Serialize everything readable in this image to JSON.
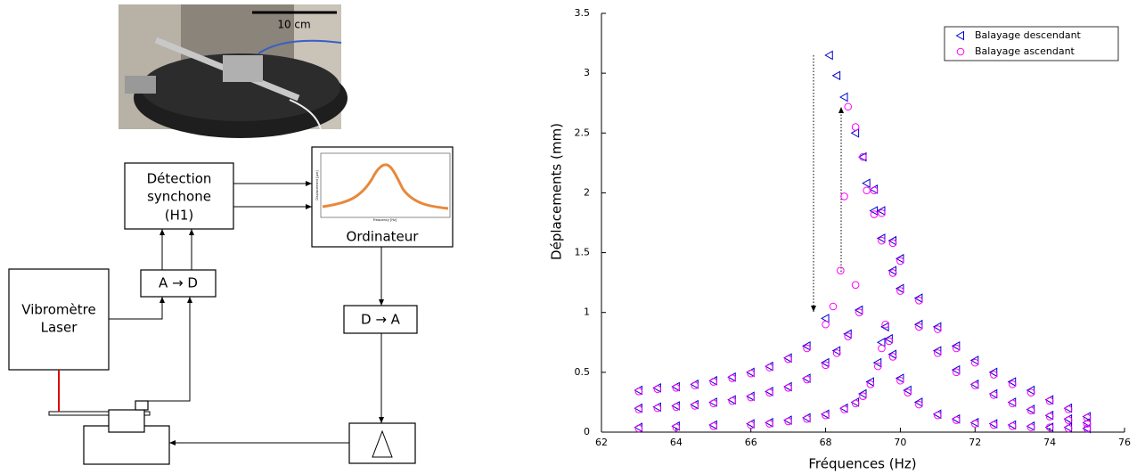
{
  "diagram": {
    "photo": {
      "scale_label": "10 cm"
    },
    "blocks": {
      "detection": [
        "Détection",
        "synchone",
        "(H1)"
      ],
      "adc": "A → D",
      "vibrometer": [
        "Vibromètre",
        "Laser"
      ],
      "computer": "Ordinateur",
      "dac": "D → A"
    },
    "inset": {
      "x_label": "Frequency [Hz]",
      "y_label": "Displacement [µm]"
    }
  },
  "chart_data": {
    "type": "scatter",
    "x_label": "Fréquences (Hz)",
    "y_label": "Déplacements (mm)",
    "xlim": [
      62,
      76
    ],
    "xticks": [
      62,
      64,
      66,
      68,
      70,
      72,
      74,
      76
    ],
    "ylim": [
      0,
      3.5
    ],
    "yticks": [
      0,
      0.5,
      1,
      1.5,
      2,
      2.5,
      3,
      3.5
    ],
    "legend": "upper right",
    "series": [
      {
        "name": "Balayage descendant",
        "color": "#0000cc",
        "marker": "triangle-left",
        "x": [
          63,
          63.5,
          64,
          64.5,
          65,
          65.5,
          66,
          66.5,
          67,
          67.5,
          68,
          68.1,
          68.3,
          68.5,
          68.8,
          69,
          69.3,
          69.5,
          69.8,
          70,
          70.5,
          71,
          71.5,
          72,
          72.5,
          73,
          73.5,
          74,
          74.5,
          75,
          63,
          63.5,
          64,
          64.5,
          65,
          65.5,
          66,
          66.5,
          67,
          67.5,
          68,
          68.3,
          68.6,
          68.9,
          69.1,
          69.3,
          69.5,
          69.8,
          70,
          70.5,
          71,
          71.5,
          72,
          72.5,
          73,
          73.5,
          74,
          74.5,
          75,
          63,
          64,
          65,
          66,
          66.5,
          67,
          67.5,
          68,
          68.5,
          68.8,
          69,
          69.2,
          69.4,
          69.5,
          69.6,
          69.7,
          69.8,
          70,
          70.2,
          70.5,
          71,
          71.5,
          72,
          72.5,
          73,
          73.5,
          74,
          74.5,
          75
        ],
        "values": [
          0.35,
          0.37,
          0.38,
          0.4,
          0.43,
          0.46,
          0.5,
          0.55,
          0.62,
          0.72,
          0.95,
          3.15,
          2.98,
          2.8,
          2.5,
          2.3,
          2.03,
          1.85,
          1.6,
          1.45,
          1.12,
          0.88,
          0.72,
          0.6,
          0.5,
          0.42,
          0.35,
          0.27,
          0.2,
          0.13,
          0.2,
          0.21,
          0.22,
          0.23,
          0.25,
          0.27,
          0.3,
          0.34,
          0.38,
          0.45,
          0.58,
          0.68,
          0.82,
          1.02,
          2.08,
          1.85,
          1.62,
          1.35,
          1.2,
          0.9,
          0.68,
          0.52,
          0.4,
          0.32,
          0.25,
          0.19,
          0.14,
          0.11,
          0.08,
          0.04,
          0.05,
          0.06,
          0.07,
          0.08,
          0.1,
          0.12,
          0.15,
          0.2,
          0.25,
          0.32,
          0.42,
          0.58,
          0.75,
          0.88,
          0.78,
          0.65,
          0.45,
          0.35,
          0.25,
          0.15,
          0.11,
          0.08,
          0.07,
          0.06,
          0.05,
          0.04,
          0.04,
          0.03
        ]
      },
      {
        "name": "Balayage ascendant",
        "color": "#ff00ff",
        "marker": "circle",
        "x": [
          63,
          63.5,
          64,
          64.5,
          65,
          65.5,
          66,
          66.5,
          67,
          67.5,
          68,
          68.2,
          68.4,
          68.5,
          68.8,
          68.6,
          68.8,
          69,
          69.3,
          69.5,
          69.8,
          70,
          70.5,
          71,
          71.5,
          72,
          72.5,
          73,
          73.5,
          74,
          74.5,
          75,
          63,
          63.5,
          64,
          64.5,
          65,
          65.5,
          66,
          66.5,
          67,
          67.5,
          68,
          68.3,
          68.6,
          68.9,
          69.1,
          69.3,
          69.5,
          69.8,
          70,
          70.5,
          71,
          71.5,
          72,
          72.5,
          73,
          73.5,
          74,
          74.5,
          75,
          63,
          64,
          65,
          66,
          66.5,
          67,
          67.5,
          68,
          68.5,
          68.8,
          69,
          69.2,
          69.4,
          69.5,
          69.6,
          69.7,
          69.8,
          70,
          70.2,
          70.5,
          71,
          71.5,
          72,
          72.5,
          73,
          73.5,
          74,
          74.5,
          75
        ],
        "values": [
          0.34,
          0.36,
          0.37,
          0.39,
          0.42,
          0.45,
          0.49,
          0.54,
          0.61,
          0.7,
          0.9,
          1.05,
          1.35,
          1.97,
          1.23,
          2.72,
          2.55,
          2.3,
          2.02,
          1.83,
          1.58,
          1.43,
          1.1,
          0.86,
          0.7,
          0.58,
          0.48,
          0.4,
          0.33,
          0.26,
          0.19,
          0.12,
          0.19,
          0.2,
          0.21,
          0.22,
          0.24,
          0.26,
          0.29,
          0.33,
          0.37,
          0.44,
          0.56,
          0.66,
          0.8,
          1.0,
          2.02,
          1.82,
          1.6,
          1.33,
          1.18,
          0.88,
          0.66,
          0.5,
          0.39,
          0.31,
          0.24,
          0.18,
          0.13,
          0.1,
          0.07,
          0.03,
          0.04,
          0.05,
          0.06,
          0.07,
          0.09,
          0.11,
          0.14,
          0.19,
          0.24,
          0.3,
          0.4,
          0.55,
          0.7,
          0.9,
          0.76,
          0.63,
          0.43,
          0.33,
          0.23,
          0.14,
          0.1,
          0.07,
          0.06,
          0.05,
          0.04,
          0.04,
          0.03,
          0.03
        ]
      }
    ]
  }
}
